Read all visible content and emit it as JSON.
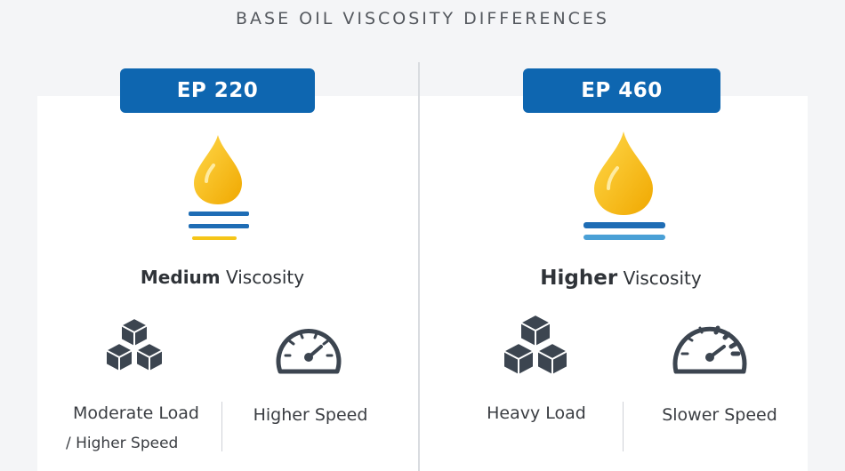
{
  "title": "BASE OIL VISCOSITY DIFFERENCES",
  "colors": {
    "badge": "#0e66b0",
    "drop": "#f7be12",
    "line_blue": "#1f6db5",
    "line_light_blue": "#4aa0d6",
    "line_yellow": "#f5c518",
    "icon": "#3c4550"
  },
  "left": {
    "badge": "EP 220",
    "viscosity_strong": "Medium",
    "viscosity_rest": " Viscosity",
    "load_icon": "cubes-icon",
    "load_label": "Moderate Load",
    "load_sub_label": "/ Higher Speed",
    "speed_icon": "speedometer-icon",
    "speed_label": "Higher Speed"
  },
  "right": {
    "badge": "EP 460",
    "viscosity_strong": "Higher",
    "viscosity_rest": " Viscosity",
    "load_icon": "cubes-icon",
    "load_label": "Heavy Load",
    "speed_icon": "speedometer-icon",
    "speed_label": "Slower Speed"
  }
}
